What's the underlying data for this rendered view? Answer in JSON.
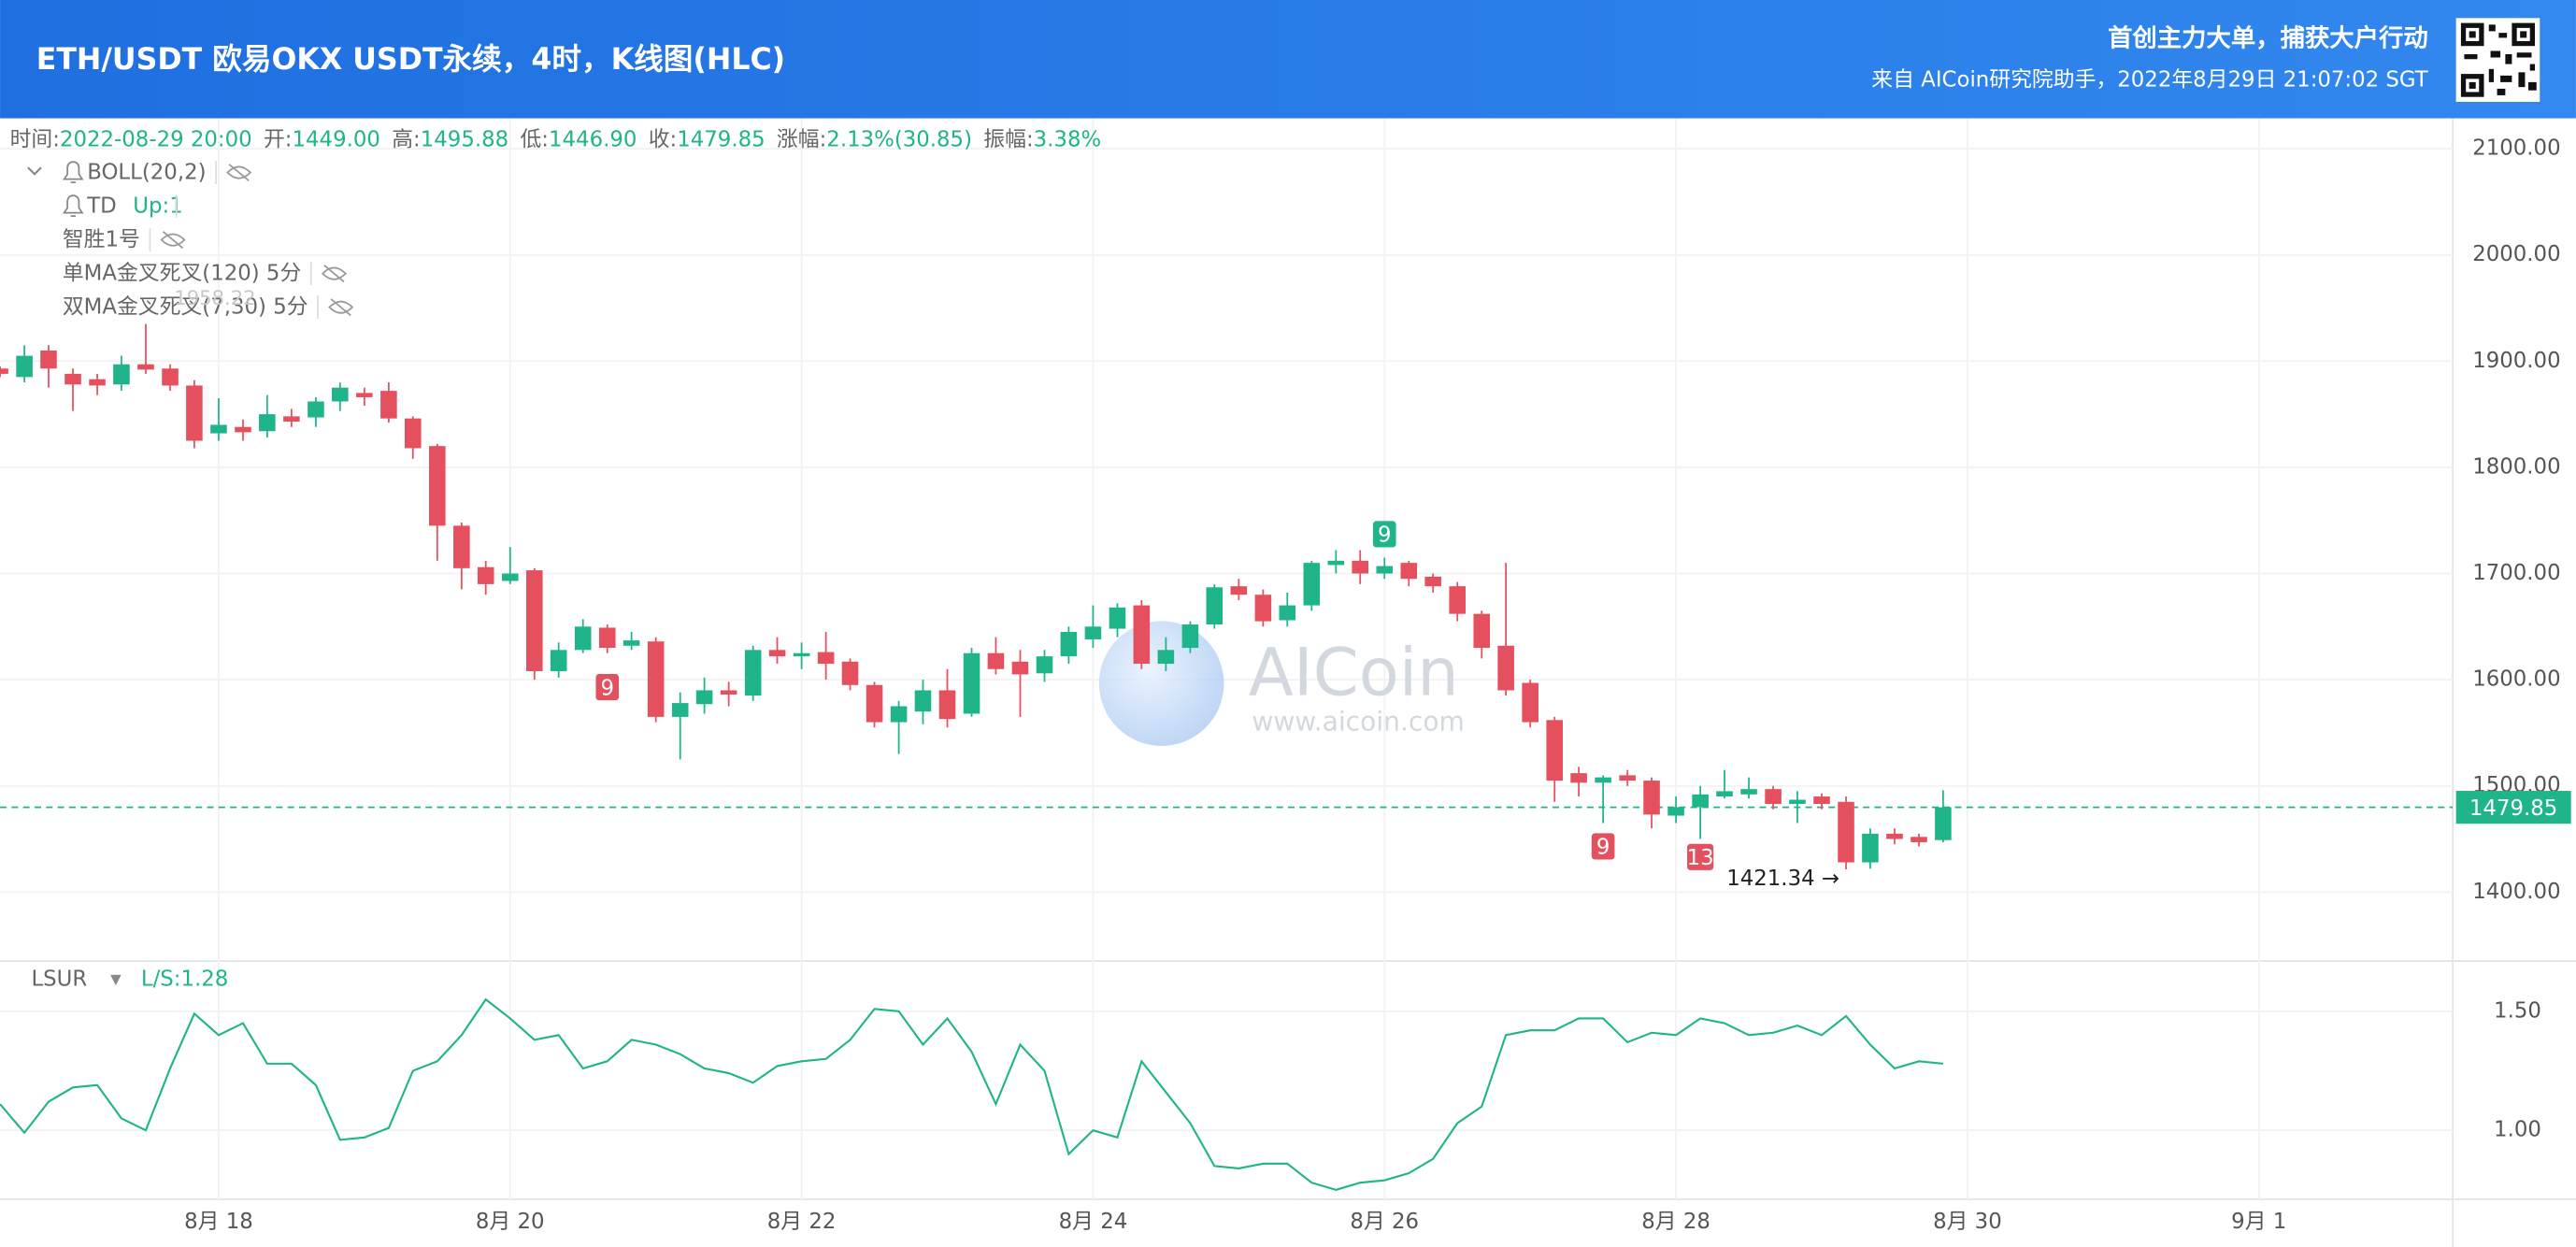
{
  "header": {
    "title": "ETH/USDT 欧易OKX USDT永续，4时，K线图(HLC)",
    "slogan": "首创主力大单，捕获大户行动",
    "source": "来自 AICoin研究院助手，2022年8月29日 21:07:02 SGT"
  },
  "chart_data": {
    "type": "candlestick",
    "info": [
      {
        "label": "时间:",
        "value": "2022-08-29 20:00"
      },
      {
        "label": "开:",
        "value": "1449.00"
      },
      {
        "label": "高:",
        "value": "1495.88"
      },
      {
        "label": "低:",
        "value": "1446.90"
      },
      {
        "label": "收:",
        "value": "1479.85"
      },
      {
        "label": "涨幅:",
        "value": "2.13%(30.85)"
      },
      {
        "label": "振幅:",
        "value": "3.38%"
      }
    ],
    "indicators": [
      {
        "name": "BOLL(20,2)"
      },
      {
        "name": "TD",
        "value": "Up:1"
      },
      {
        "name": "智胜1号"
      },
      {
        "name": "单MA金叉死叉(120) 5分"
      },
      {
        "name": "双MA金叉死叉(7,30) 5分"
      }
    ],
    "hidden_label": "1958.22",
    "up_color": "#1fb48a",
    "down_color": "#e5505f",
    "x": [
      16.5,
      16.667,
      16.833,
      17,
      17.167,
      17.333,
      17.5,
      17.667,
      17.833,
      18,
      18.167,
      18.333,
      18.5,
      18.667,
      18.833,
      19,
      19.167,
      19.333,
      19.5,
      19.667,
      19.833,
      20,
      20.167,
      20.333,
      20.5,
      20.667,
      20.833,
      21,
      21.167,
      21.333,
      21.5,
      21.667,
      21.833,
      22,
      22.167,
      22.333,
      22.5,
      22.667,
      22.833,
      23,
      23.167,
      23.333,
      23.5,
      23.667,
      23.833,
      24,
      24.167,
      24.333,
      24.5,
      24.667,
      24.833,
      25,
      25.167,
      25.333,
      25.5,
      25.667,
      25.833,
      26,
      26.167,
      26.333,
      26.5,
      26.667,
      26.833,
      27,
      27.167,
      27.333,
      27.5,
      27.667,
      27.833,
      28,
      28.167,
      28.333,
      28.5,
      28.667,
      28.833,
      29,
      29.167,
      29.333,
      29.5,
      29.667,
      29.833
    ],
    "open": [
      1893,
      1885,
      1910,
      1888,
      1883,
      1878,
      1897,
      1893,
      1877,
      1832,
      1838,
      1834,
      1848,
      1847,
      1862,
      1870,
      1872,
      1846,
      1820,
      1745,
      1706,
      1693,
      1703,
      1608,
      1628,
      1649,
      1632,
      1636,
      1565,
      1577,
      1590,
      1585,
      1628,
      1622,
      1626,
      1617,
      1595,
      1560,
      1570,
      1590,
      1568,
      1625,
      1617,
      1606,
      1622,
      1638,
      1648,
      1670,
      1615,
      1630,
      1652,
      1688,
      1680,
      1656,
      1670,
      1708,
      1712,
      1700,
      1710,
      1697,
      1688,
      1662,
      1632,
      1597,
      1562,
      1512,
      1503,
      1510,
      1505,
      1472,
      1480,
      1490,
      1492,
      1497,
      1483,
      1490,
      1485,
      1428,
      1455,
      1452,
      1449
    ],
    "high": [
      1895,
      1915,
      1915,
      1893,
      1888,
      1905,
      1935,
      1897,
      1882,
      1865,
      1845,
      1868,
      1855,
      1866,
      1880,
      1875,
      1880,
      1848,
      1822,
      1748,
      1712,
      1725,
      1705,
      1635,
      1657,
      1652,
      1645,
      1640,
      1588,
      1602,
      1598,
      1632,
      1640,
      1635,
      1645,
      1620,
      1598,
      1580,
      1600,
      1610,
      1630,
      1640,
      1628,
      1628,
      1650,
      1670,
      1672,
      1675,
      1640,
      1655,
      1690,
      1695,
      1685,
      1682,
      1712,
      1722,
      1722,
      1715,
      1712,
      1700,
      1692,
      1665,
      1710,
      1600,
      1565,
      1518,
      1510,
      1515,
      1508,
      1490,
      1500,
      1515,
      1508,
      1500,
      1495,
      1493,
      1490,
      1460,
      1460,
      1455,
      1495.88
    ],
    "low": [
      1885,
      1880,
      1875,
      1853,
      1868,
      1872,
      1888,
      1872,
      1818,
      1825,
      1825,
      1828,
      1838,
      1838,
      1853,
      1858,
      1842,
      1808,
      1712,
      1685,
      1680,
      1690,
      1600,
      1602,
      1625,
      1625,
      1628,
      1560,
      1525,
      1568,
      1575,
      1580,
      1615,
      1610,
      1600,
      1590,
      1555,
      1530,
      1558,
      1555,
      1565,
      1605,
      1565,
      1598,
      1615,
      1630,
      1640,
      1610,
      1608,
      1625,
      1648,
      1675,
      1650,
      1650,
      1665,
      1700,
      1690,
      1695,
      1688,
      1682,
      1655,
      1620,
      1585,
      1555,
      1485,
      1490,
      1465,
      1500,
      1460,
      1465,
      1450,
      1488,
      1488,
      1478,
      1465,
      1478,
      1421.34,
      1422,
      1445,
      1443,
      1446.9
    ],
    "close": [
      1888,
      1905,
      1893,
      1878,
      1877,
      1897,
      1892,
      1877,
      1825,
      1840,
      1833,
      1850,
      1843,
      1862,
      1875,
      1866,
      1846,
      1818,
      1745,
      1705,
      1690,
      1700,
      1608,
      1628,
      1650,
      1630,
      1637,
      1565,
      1578,
      1590,
      1586,
      1628,
      1622,
      1625,
      1615,
      1595,
      1560,
      1575,
      1590,
      1563,
      1625,
      1610,
      1605,
      1622,
      1645,
      1650,
      1668,
      1615,
      1628,
      1652,
      1687,
      1680,
      1655,
      1670,
      1710,
      1712,
      1700,
      1707,
      1695,
      1688,
      1662,
      1630,
      1590,
      1560,
      1505,
      1503,
      1508,
      1505,
      1473,
      1480,
      1492,
      1495,
      1497,
      1483,
      1487,
      1483,
      1428,
      1455,
      1450,
      1447,
      1479.85
    ],
    "xlim": [
      16.5,
      33.33
    ],
    "xticks": [
      {
        "value": 18,
        "label": "8月 18"
      },
      {
        "value": 20,
        "label": "8月 20"
      },
      {
        "value": 22,
        "label": "8月 22"
      },
      {
        "value": 24,
        "label": "8月 24"
      },
      {
        "value": 26,
        "label": "8月 26"
      },
      {
        "value": 28,
        "label": "8月 28"
      },
      {
        "value": 30,
        "label": "8月 30"
      },
      {
        "value": 32,
        "label": "9月 1"
      }
    ],
    "ylim": [
      1335,
      2124
    ],
    "yticks": [
      {
        "value": 1400,
        "label": "1400.00"
      },
      {
        "value": 1500,
        "label": "1500.00"
      },
      {
        "value": 1600,
        "label": "1600.00"
      },
      {
        "value": 1700,
        "label": "1700.00"
      },
      {
        "value": 1800,
        "label": "1800.00"
      },
      {
        "value": 1900,
        "label": "1900.00"
      },
      {
        "value": 2000,
        "label": "2000.00"
      },
      {
        "value": 2100,
        "label": "2100.00"
      }
    ],
    "grid": true,
    "last_price": 1479.85,
    "annotations": [
      {
        "x": 20.667,
        "y": 1593,
        "text": "9",
        "color": "#e5505f"
      },
      {
        "x": 26.0,
        "y": 1737,
        "text": "9",
        "color": "#1fb48a"
      },
      {
        "x": 27.5,
        "y": 1443,
        "text": "9",
        "color": "#e5505f"
      },
      {
        "x": 28.167,
        "y": 1433,
        "text": "13",
        "color": "#e5505f"
      }
    ],
    "low_label": {
      "x": 29.167,
      "y": 1421.34,
      "label": "1421.34 →"
    },
    "watermark": {
      "name": "AICoin",
      "url": "www.aicoin.com"
    },
    "subchart": {
      "type": "line",
      "name": "LSUR",
      "legend": "L/S:",
      "color": "#1fb48a",
      "values": [
        1.11,
        0.99,
        1.12,
        1.18,
        1.19,
        1.05,
        1.0,
        1.26,
        1.49,
        1.4,
        1.45,
        1.28,
        1.28,
        1.19,
        0.96,
        0.97,
        1.01,
        1.25,
        1.29,
        1.4,
        1.55,
        1.47,
        1.38,
        1.4,
        1.26,
        1.29,
        1.38,
        1.36,
        1.32,
        1.26,
        1.24,
        1.2,
        1.27,
        1.29,
        1.3,
        1.38,
        1.51,
        1.5,
        1.36,
        1.47,
        1.33,
        1.11,
        1.36,
        1.25,
        0.9,
        1.0,
        0.97,
        1.29,
        1.16,
        1.03,
        0.85,
        0.84,
        0.86,
        0.86,
        0.78,
        0.75,
        0.78,
        0.79,
        0.82,
        0.88,
        1.03,
        1.1,
        1.4,
        1.42,
        1.42,
        1.47,
        1.47,
        1.37,
        1.41,
        1.4,
        1.47,
        1.45,
        1.4,
        1.41,
        1.44,
        1.4,
        1.48,
        1.36,
        1.26,
        1.29,
        1.28
      ],
      "ylim": [
        0.71,
        1.69
      ],
      "yticks": [
        {
          "value": 1.0,
          "label": "1.00"
        },
        {
          "value": 1.5,
          "label": "1.50"
        }
      ]
    }
  }
}
